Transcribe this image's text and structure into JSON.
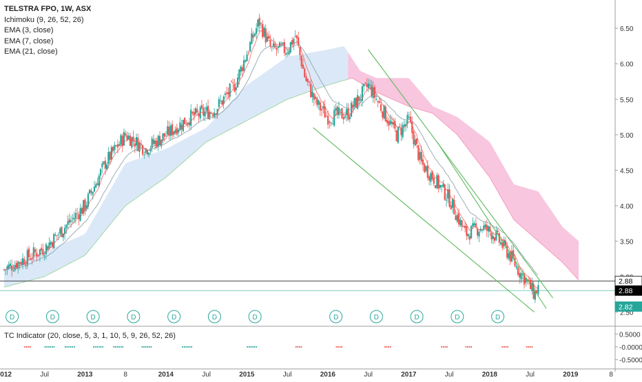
{
  "legend": {
    "symbol": "TELSTRA FPO, 1W, ASX",
    "indicators": [
      "Ichimoku (9, 26, 52, 26)",
      "EMA (3, close)",
      "EMA (7, close)",
      "EMA (21, close)"
    ]
  },
  "sub_indicator": {
    "label": "TC Indicator (20, close, 5, 3, 1, 10, 5, 9, 26, 52, 26)"
  },
  "price_labels": {
    "last_a": "2.88",
    "last_b": "2.88",
    "last_c": "2.82"
  },
  "colors": {
    "up": "#26a69a",
    "down": "#ef5350",
    "cloud_bull": "#dbe8f7",
    "cloud_bear": "#f8c6df",
    "trendline": "#5cb85c",
    "ema_fast": "#ef5350",
    "ema_slow": "#90a4ae",
    "badge": "#26a69a"
  },
  "chart_data": {
    "type": "line",
    "title": "TELSTRA FPO, 1W, ASX",
    "ylim": [
      2.3,
      6.9
    ],
    "y_ticks": [
      "6.50",
      "6.00",
      "5.50",
      "5.00",
      "4.50",
      "4.00",
      "3.50",
      "3.00",
      "2.50"
    ],
    "x_ticks": [
      "2012",
      "Jul",
      "2013",
      "8",
      "2014",
      "Jul",
      "2015",
      "Jul",
      "2016",
      "Jul",
      "2017",
      "Jul",
      "2018",
      "Jul",
      "2019",
      "8"
    ],
    "price_anchors": [
      {
        "x": 2012.0,
        "y": 3.1
      },
      {
        "x": 2012.5,
        "y": 3.4
      },
      {
        "x": 2013.0,
        "y": 4.0
      },
      {
        "x": 2013.25,
        "y": 4.6
      },
      {
        "x": 2013.5,
        "y": 5.0
      },
      {
        "x": 2013.75,
        "y": 4.8
      },
      {
        "x": 2014.0,
        "y": 5.0
      },
      {
        "x": 2014.3,
        "y": 5.25
      },
      {
        "x": 2014.6,
        "y": 5.35
      },
      {
        "x": 2014.85,
        "y": 5.7
      },
      {
        "x": 2015.05,
        "y": 6.3
      },
      {
        "x": 2015.15,
        "y": 6.6
      },
      {
        "x": 2015.3,
        "y": 6.2
      },
      {
        "x": 2015.5,
        "y": 6.2
      },
      {
        "x": 2015.6,
        "y": 6.4
      },
      {
        "x": 2015.72,
        "y": 5.8
      },
      {
        "x": 2015.85,
        "y": 5.45
      },
      {
        "x": 2016.0,
        "y": 5.25
      },
      {
        "x": 2016.25,
        "y": 5.3
      },
      {
        "x": 2016.5,
        "y": 5.7
      },
      {
        "x": 2016.7,
        "y": 5.3
      },
      {
        "x": 2016.85,
        "y": 5.0
      },
      {
        "x": 2017.0,
        "y": 5.2
      },
      {
        "x": 2017.15,
        "y": 4.6
      },
      {
        "x": 2017.3,
        "y": 4.4
      },
      {
        "x": 2017.5,
        "y": 4.1
      },
      {
        "x": 2017.7,
        "y": 3.6
      },
      {
        "x": 2017.9,
        "y": 3.7
      },
      {
        "x": 2018.05,
        "y": 3.6
      },
      {
        "x": 2018.25,
        "y": 3.3
      },
      {
        "x": 2018.35,
        "y": 3.1
      },
      {
        "x": 2018.45,
        "y": 2.95
      },
      {
        "x": 2018.55,
        "y": 2.75
      },
      {
        "x": 2018.6,
        "y": 2.85
      }
    ],
    "cloud_top": [
      {
        "x": 2012.0,
        "y": 3.1
      },
      {
        "x": 2013.0,
        "y": 3.6
      },
      {
        "x": 2013.5,
        "y": 4.6
      },
      {
        "x": 2014.0,
        "y": 4.8
      },
      {
        "x": 2014.5,
        "y": 5.1
      },
      {
        "x": 2015.0,
        "y": 5.7
      },
      {
        "x": 2015.5,
        "y": 6.1
      },
      {
        "x": 2016.0,
        "y": 6.2
      },
      {
        "x": 2016.2,
        "y": 6.25
      },
      {
        "x": 2016.4,
        "y": 5.9
      },
      {
        "x": 2016.6,
        "y": 5.8
      },
      {
        "x": 2017.0,
        "y": 5.8
      },
      {
        "x": 2017.3,
        "y": 5.4
      },
      {
        "x": 2017.6,
        "y": 5.25
      },
      {
        "x": 2018.0,
        "y": 4.9
      },
      {
        "x": 2018.3,
        "y": 4.3
      },
      {
        "x": 2018.6,
        "y": 4.2
      },
      {
        "x": 2018.9,
        "y": 3.7
      },
      {
        "x": 2019.1,
        "y": 3.5
      }
    ],
    "cloud_bottom": [
      {
        "x": 2012.0,
        "y": 2.85
      },
      {
        "x": 2012.5,
        "y": 3.0
      },
      {
        "x": 2013.0,
        "y": 3.3
      },
      {
        "x": 2013.5,
        "y": 4.0
      },
      {
        "x": 2014.0,
        "y": 4.4
      },
      {
        "x": 2014.5,
        "y": 4.9
      },
      {
        "x": 2015.0,
        "y": 5.2
      },
      {
        "x": 2015.5,
        "y": 5.5
      },
      {
        "x": 2016.0,
        "y": 5.7
      },
      {
        "x": 2016.3,
        "y": 5.8
      },
      {
        "x": 2016.6,
        "y": 5.6
      },
      {
        "x": 2017.0,
        "y": 5.4
      },
      {
        "x": 2017.3,
        "y": 5.3
      },
      {
        "x": 2017.6,
        "y": 5.0
      },
      {
        "x": 2018.0,
        "y": 4.4
      },
      {
        "x": 2018.3,
        "y": 3.8
      },
      {
        "x": 2018.6,
        "y": 3.5
      },
      {
        "x": 2018.9,
        "y": 3.2
      },
      {
        "x": 2019.1,
        "y": 2.95
      }
    ],
    "cloud_flip_x": 2016.25,
    "trendlines": [
      {
        "x1": 2015.82,
        "y1": 5.1,
        "x2": 2018.55,
        "y2": 2.5
      },
      {
        "x1": 2016.5,
        "y1": 6.2,
        "x2": 2018.78,
        "y2": 2.7
      },
      {
        "x1": 2017.35,
        "y1": 4.9,
        "x2": 2018.7,
        "y2": 2.55
      }
    ],
    "dividend_markers": [
      2012.1,
      2012.6,
      2013.1,
      2013.6,
      2014.1,
      2014.6,
      2015.1,
      2016.1,
      2016.6,
      2017.1,
      2017.6,
      2018.1
    ],
    "dividend_label": "D",
    "sub_ylim": [
      -0.75,
      0.75
    ],
    "sub_y_ticks": [
      "0.5000",
      "-0.0000",
      "-0.5000"
    ],
    "horizontal_levels": [
      2.88,
      2.82
    ],
    "xlim": [
      2011.95,
      2019.55
    ]
  }
}
